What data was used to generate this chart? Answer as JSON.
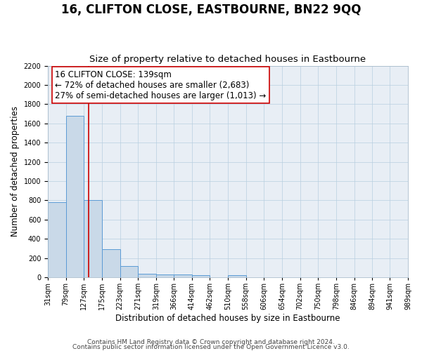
{
  "title": "16, CLIFTON CLOSE, EASTBOURNE, BN22 9QQ",
  "subtitle": "Size of property relative to detached houses in Eastbourne",
  "xlabel": "Distribution of detached houses by size in Eastbourne",
  "ylabel": "Number of detached properties",
  "bar_lefts": [
    31,
    79,
    127,
    175,
    223,
    271,
    319,
    366,
    414,
    462,
    510,
    558,
    606,
    654,
    702,
    750,
    798,
    846,
    894,
    941
  ],
  "bar_rights": [
    79,
    127,
    175,
    223,
    271,
    319,
    366,
    414,
    462,
    510,
    558,
    606,
    654,
    702,
    750,
    798,
    846,
    894,
    941,
    989
  ],
  "bar_heights": [
    780,
    1680,
    800,
    295,
    115,
    38,
    28,
    28,
    25,
    0,
    25,
    0,
    0,
    0,
    0,
    0,
    0,
    0,
    0,
    0
  ],
  "bar_color": "#c9d9e8",
  "bar_edge_color": "#5b9bd5",
  "property_line_x": 139,
  "property_line_color": "#cc0000",
  "annotation_line1": "16 CLIFTON CLOSE: 139sqm",
  "annotation_line2": "← 72% of detached houses are smaller (2,683)",
  "annotation_line3": "27% of semi-detached houses are larger (1,013) →",
  "ylim": [
    0,
    2200
  ],
  "yticks": [
    0,
    200,
    400,
    600,
    800,
    1000,
    1200,
    1400,
    1600,
    1800,
    2000,
    2200
  ],
  "tick_labels": [
    "31sqm",
    "79sqm",
    "127sqm",
    "175sqm",
    "223sqm",
    "271sqm",
    "319sqm",
    "366sqm",
    "414sqm",
    "462sqm",
    "510sqm",
    "558sqm",
    "606sqm",
    "654sqm",
    "702sqm",
    "750sqm",
    "798sqm",
    "846sqm",
    "894sqm",
    "941sqm",
    "989sqm"
  ],
  "x_tick_positions": [
    31,
    79,
    127,
    175,
    223,
    271,
    319,
    366,
    414,
    462,
    510,
    558,
    606,
    654,
    702,
    750,
    798,
    846,
    894,
    941,
    989
  ],
  "grid_color": "#b8cfe0",
  "bg_color": "#e8eef5",
  "footer_line1": "Contains HM Land Registry data © Crown copyright and database right 2024.",
  "footer_line2": "Contains public sector information licensed under the Open Government Licence v3.0.",
  "title_fontsize": 12,
  "subtitle_fontsize": 9.5,
  "axis_label_fontsize": 8.5,
  "tick_fontsize": 7,
  "annotation_fontsize": 8.5,
  "footer_fontsize": 6.5
}
